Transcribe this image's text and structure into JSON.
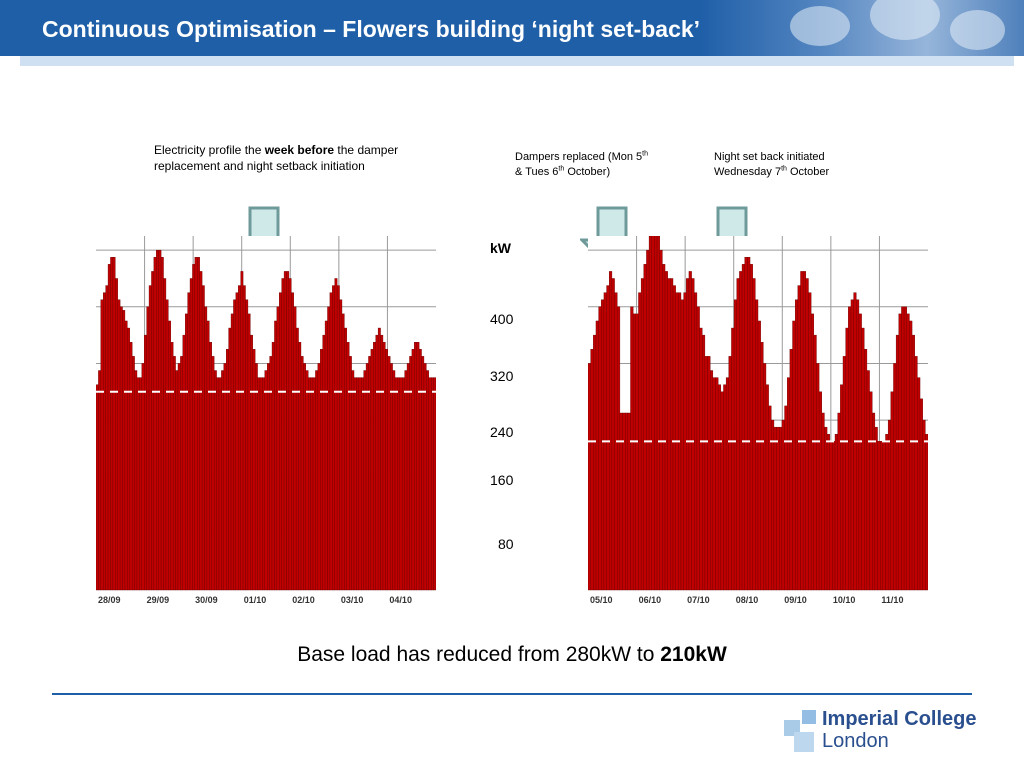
{
  "header": {
    "title": "Continuous Optimisation – Flowers building ‘night set-back’"
  },
  "annotations": {
    "left": {
      "text_pre": "Electricity profile the ",
      "text_bold": "week before",
      "text_post": " the damper replacement and night setback initiation"
    },
    "dampers": {
      "line1": "Dampers replaced (Mon 5",
      "sup1": "th",
      "line2_pre": "& Tues 6",
      "sup2": "th",
      "line2_post": " October)"
    },
    "setback": {
      "line1": "Night set back initiated",
      "line2_pre": "Wednesday 7",
      "sup": "th",
      "line2_post": " October"
    }
  },
  "axis": {
    "unit": "kW",
    "ticks": [
      "400",
      "320",
      "240",
      "160",
      "80"
    ]
  },
  "caption": {
    "text_pre": "Base load has reduced from 280kW to ",
    "text_bold": "210kW"
  },
  "logo": {
    "line1": "Imperial College",
    "line2": "London"
  },
  "colors": {
    "header": "#1f5fa8",
    "bar_fill": "#c00000",
    "bar_stroke": "#6a0000",
    "arrow_fill": "#cfe8e8",
    "arrow_stroke": "#6f9a9a",
    "baseline": "#ffffff"
  },
  "chart_data": [
    {
      "type": "bar",
      "title": "",
      "x_tick_labels": [
        "28/09",
        "29/09",
        "30/09",
        "01/10",
        "02/10",
        "03/10",
        "04/10"
      ],
      "ylabel": "kW",
      "base_load_kW": 280,
      "ylim": [
        0,
        500
      ],
      "values": [
        290,
        310,
        410,
        420,
        430,
        460,
        470,
        470,
        440,
        410,
        400,
        395,
        380,
        370,
        350,
        330,
        310,
        300,
        300,
        320,
        360,
        400,
        430,
        450,
        470,
        480,
        480,
        470,
        440,
        410,
        380,
        350,
        330,
        310,
        320,
        330,
        360,
        390,
        420,
        440,
        460,
        470,
        470,
        450,
        430,
        400,
        380,
        350,
        330,
        310,
        300,
        300,
        310,
        320,
        340,
        370,
        390,
        410,
        420,
        430,
        450,
        430,
        410,
        390,
        360,
        340,
        320,
        300,
        300,
        300,
        310,
        320,
        330,
        350,
        380,
        400,
        420,
        440,
        450,
        450,
        440,
        420,
        400,
        370,
        350,
        330,
        320,
        310,
        300,
        300,
        300,
        310,
        320,
        340,
        360,
        380,
        400,
        420,
        430,
        440,
        430,
        410,
        390,
        370,
        350,
        330,
        310,
        300,
        300,
        300,
        300,
        310,
        320,
        330,
        340,
        350,
        360,
        370,
        360,
        350,
        340,
        330,
        320,
        310,
        300,
        300,
        300,
        300,
        310,
        320,
        330,
        340,
        350,
        350,
        340,
        330,
        320,
        310,
        300,
        300,
        300
      ]
    },
    {
      "type": "bar",
      "title": "",
      "x_tick_labels": [
        "05/10",
        "06/10",
        "07/10",
        "08/10",
        "09/10",
        "10/10",
        "11/10"
      ],
      "ylabel": "kW",
      "base_load_kW": 210,
      "ylim": [
        0,
        500
      ],
      "values": [
        320,
        340,
        360,
        380,
        400,
        410,
        420,
        430,
        450,
        440,
        420,
        400,
        250,
        250,
        250,
        250,
        400,
        390,
        390,
        420,
        440,
        460,
        480,
        500,
        520,
        520,
        500,
        480,
        460,
        450,
        440,
        440,
        430,
        420,
        420,
        410,
        420,
        440,
        450,
        440,
        420,
        400,
        370,
        360,
        330,
        330,
        310,
        300,
        300,
        290,
        280,
        290,
        300,
        330,
        370,
        410,
        440,
        450,
        460,
        470,
        470,
        460,
        440,
        410,
        380,
        350,
        320,
        290,
        260,
        240,
        230,
        230,
        230,
        240,
        260,
        300,
        340,
        380,
        410,
        430,
        450,
        450,
        440,
        420,
        390,
        360,
        320,
        280,
        250,
        230,
        220,
        210,
        210,
        220,
        250,
        290,
        330,
        370,
        400,
        410,
        420,
        410,
        390,
        370,
        340,
        310,
        280,
        250,
        230,
        210,
        210,
        210,
        220,
        240,
        280,
        320,
        360,
        390,
        400,
        400,
        390,
        380,
        360,
        330,
        300,
        270,
        240,
        220
      ]
    }
  ]
}
